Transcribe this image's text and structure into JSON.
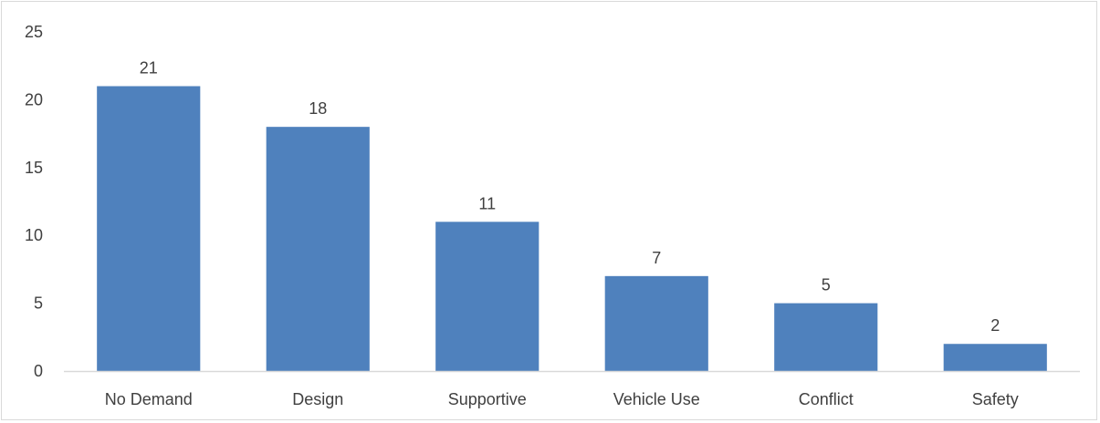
{
  "chart_data": {
    "type": "bar",
    "title": "",
    "xlabel": "",
    "ylabel": "",
    "categories": [
      "No Demand",
      "Design",
      "Supportive",
      "Vehicle Use",
      "Conflict",
      "Safety"
    ],
    "values": [
      21,
      18,
      11,
      7,
      5,
      2
    ],
    "data_labels": [
      "21",
      "18",
      "11",
      "7",
      "5",
      "2"
    ],
    "y_ticks": [
      "0",
      "5",
      "10",
      "15",
      "20",
      "25"
    ],
    "ylim": [
      0,
      25
    ],
    "grid": false,
    "legend": "none",
    "bar_color": "#4f81bd",
    "axis_color": "#d9d9d9",
    "text_color": "#404040"
  }
}
